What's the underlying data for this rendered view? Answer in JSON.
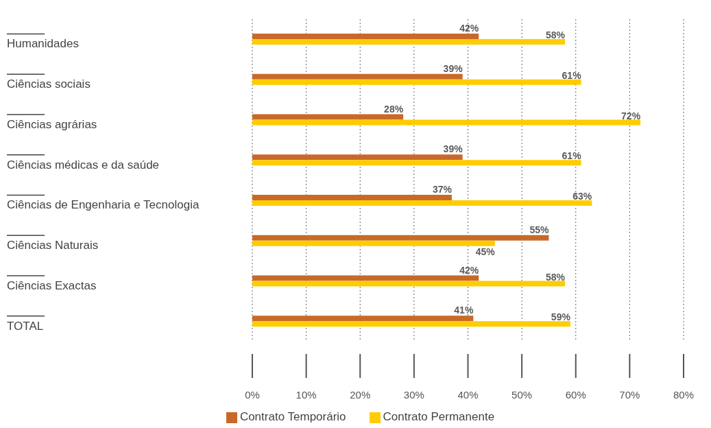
{
  "chart_data": {
    "type": "bar",
    "orientation": "horizontal",
    "categories": [
      "Humanidades",
      "Ciências sociais",
      "Ciências agrárias",
      "Ciências médicas e da saúde",
      "Ciências de Engenharia e Tecnologia",
      "Ciências Naturais",
      "Ciências Exactas",
      "TOTAL"
    ],
    "series": [
      {
        "name": "Contrato Temporário",
        "color": "#c8692a",
        "values": [
          42,
          39,
          28,
          39,
          37,
          55,
          42,
          41
        ],
        "value_labels": [
          "42%",
          "39%",
          "28%",
          "39%",
          "37%",
          "55%",
          "42%",
          "41%"
        ]
      },
      {
        "name": "Contrato Permanente",
        "color": "#ffcc00",
        "values": [
          58,
          61,
          72,
          61,
          63,
          45,
          58,
          59
        ],
        "value_labels": [
          "58%",
          "61%",
          "72%",
          "61%",
          "63%",
          "45%",
          "58%",
          "59%"
        ]
      }
    ],
    "xlim": [
      0,
      80
    ],
    "xticks": [
      {
        "value": 0,
        "label": "0%"
      },
      {
        "value": 10,
        "label": "10%"
      },
      {
        "value": 20,
        "label": "20%"
      },
      {
        "value": 30,
        "label": "30%"
      },
      {
        "value": 40,
        "label": "40%"
      },
      {
        "value": 50,
        "label": "50%"
      },
      {
        "value": 60,
        "label": "60%"
      },
      {
        "value": 70,
        "label": "70%"
      },
      {
        "value": 80,
        "label": "80%"
      }
    ],
    "grid": "x",
    "legend": "bottom"
  }
}
